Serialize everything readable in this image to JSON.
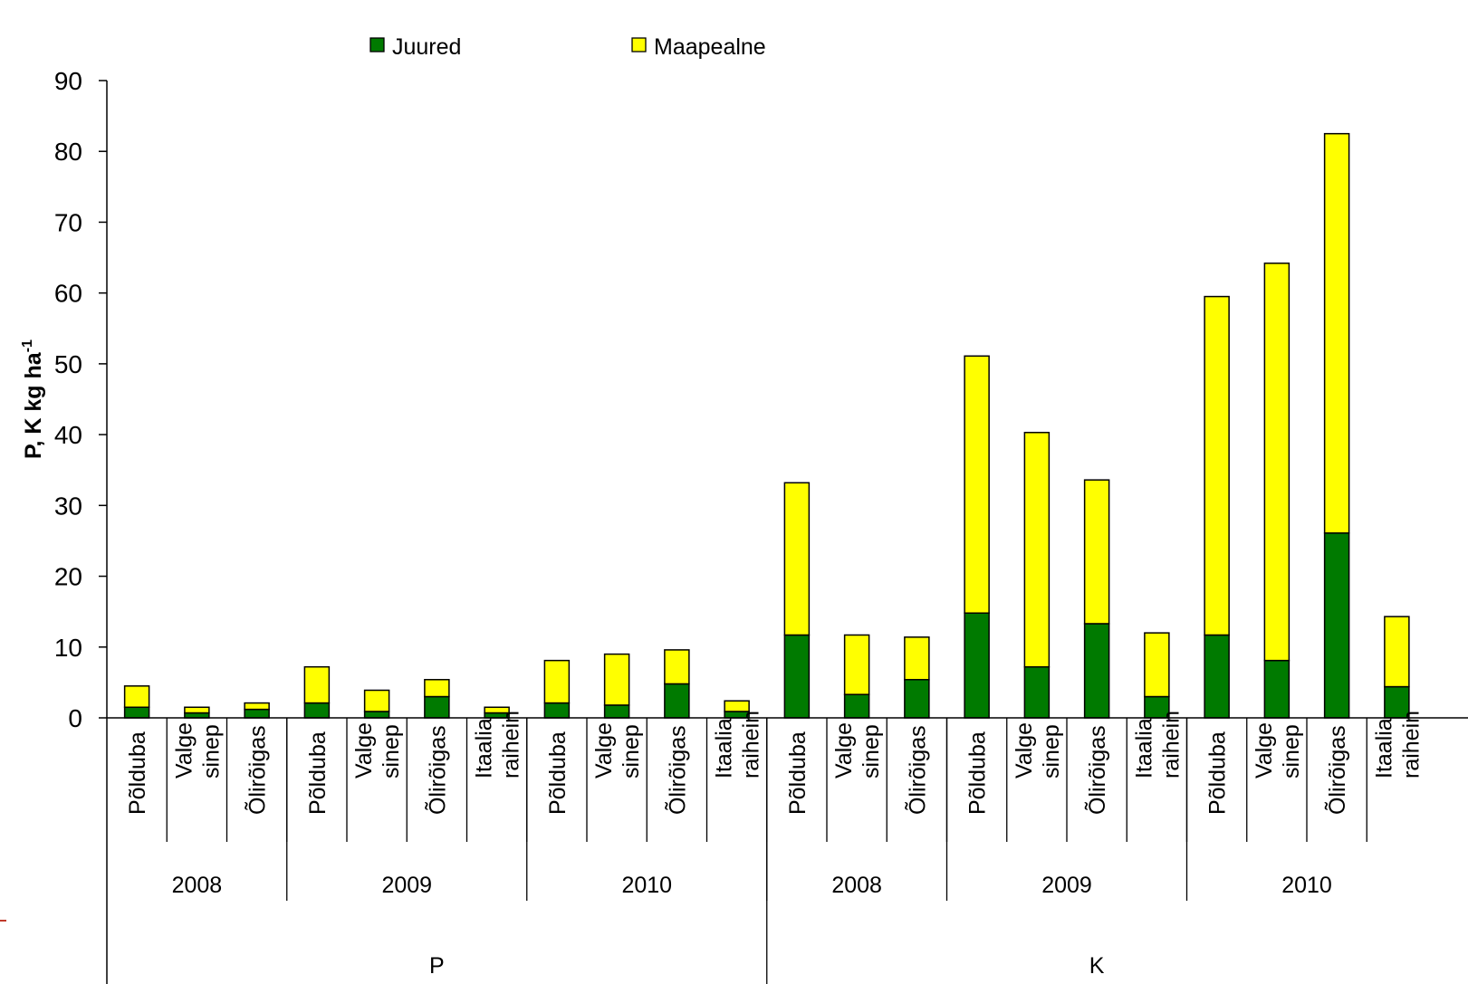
{
  "chart_data": {
    "type": "bar",
    "stacked": true,
    "title": "",
    "xlabel": "",
    "ylabel": "P, K kg ha",
    "ylabel_superscript": "-1",
    "ylim": [
      0,
      90
    ],
    "yticks": [
      0,
      10,
      20,
      30,
      40,
      50,
      60,
      70,
      80,
      90
    ],
    "grid": false,
    "legend_position": "top",
    "categories": [
      "Põlduba",
      "Valge sinep",
      "Õlirõigas",
      "Põlduba",
      "Valge sinep",
      "Õlirõigas",
      "Itaalia raihein",
      "Põlduba",
      "Valge sinep",
      "Õlirõigas",
      "Itaalia raihein",
      "Põlduba",
      "Valge sinep",
      "Õlirõigas",
      "Põlduba",
      "Valge sinep",
      "Õlirõigas",
      "Itaalia raihein",
      "Põlduba",
      "Valge sinep",
      "Õlirõigas",
      "Itaalia raihein"
    ],
    "category_lines": [
      [
        "Põlduba"
      ],
      [
        "Valge",
        "sinep"
      ],
      [
        "Õlirõigas"
      ],
      [
        "Põlduba"
      ],
      [
        "Valge",
        "sinep"
      ],
      [
        "Õlirõigas"
      ],
      [
        "Itaalia",
        "raihein"
      ],
      [
        "Põlduba"
      ],
      [
        "Valge",
        "sinep"
      ],
      [
        "Õlirõigas"
      ],
      [
        "Itaalia",
        "raihein"
      ],
      [
        "Põlduba"
      ],
      [
        "Valge",
        "sinep"
      ],
      [
        "Õlirõigas"
      ],
      [
        "Põlduba"
      ],
      [
        "Valge",
        "sinep"
      ],
      [
        "Õlirõigas"
      ],
      [
        "Itaalia",
        "raihein"
      ],
      [
        "Põlduba"
      ],
      [
        "Valge",
        "sinep"
      ],
      [
        "Õlirõigas"
      ],
      [
        "Itaalia",
        "raihein"
      ]
    ],
    "year_groups": [
      {
        "label": "2008",
        "count": 3
      },
      {
        "label": "2009",
        "count": 4
      },
      {
        "label": "2010",
        "count": 4
      },
      {
        "label": "2008",
        "count": 3
      },
      {
        "label": "2009",
        "count": 4
      },
      {
        "label": "2010",
        "count": 4
      }
    ],
    "element_groups": [
      {
        "label": "P",
        "count": 11
      },
      {
        "label": "K",
        "count": 11
      }
    ],
    "series": [
      {
        "name": "Juured",
        "color": "#007A00",
        "values": [
          1.5,
          0.7,
          1.2,
          2.1,
          0.9,
          3.0,
          0.7,
          2.1,
          1.8,
          4.8,
          0.9,
          11.7,
          3.3,
          5.4,
          14.8,
          7.2,
          13.3,
          3.0,
          11.7,
          8.1,
          26.1,
          4.4
        ]
      },
      {
        "name": "Maapealne",
        "color": "#FFFF00",
        "values": [
          3.0,
          0.8,
          0.9,
          5.1,
          3.0,
          2.4,
          0.8,
          6.0,
          7.2,
          4.8,
          1.5,
          21.5,
          8.4,
          6.0,
          36.3,
          33.1,
          20.3,
          9.0,
          47.8,
          56.1,
          56.4,
          9.9
        ]
      }
    ]
  }
}
